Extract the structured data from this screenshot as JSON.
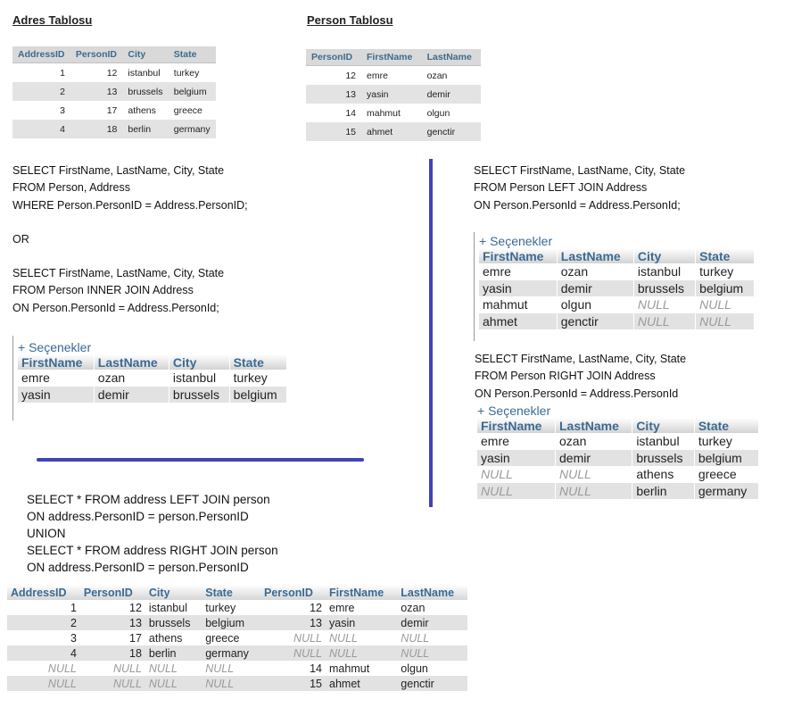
{
  "adres_title": "Adres Tablosu",
  "person_title": "Person Tablosu",
  "adres_table": {
    "headers": [
      "AddressID",
      "PersonID",
      "City",
      "State"
    ],
    "rows": [
      [
        "1",
        "12",
        "istanbul",
        "turkey"
      ],
      [
        "2",
        "13",
        "brussels",
        "belgium"
      ],
      [
        "3",
        "17",
        "athens",
        "greece"
      ],
      [
        "4",
        "18",
        "berlin",
        "germany"
      ]
    ]
  },
  "person_table": {
    "headers": [
      "PersonID",
      "FirstName",
      "LastName"
    ],
    "rows": [
      [
        "12",
        "emre",
        "ozan"
      ],
      [
        "13",
        "yasin",
        "demir"
      ],
      [
        "14",
        "mahmut",
        "olgun"
      ],
      [
        "15",
        "ahmet",
        "genctir"
      ]
    ]
  },
  "inner_join": {
    "query1": "SELECT FirstName, LastName, City, State\nFROM Person, Address\nWHERE Person.PersonID = Address.PersonID;",
    "or_label": "OR",
    "query2": "SELECT FirstName, LastName, City, State\nFROM Person INNER JOIN Address\nON Person.PersonId = Address.PersonId;",
    "options_label": "+ Seçenekler",
    "headers": [
      "FirstName",
      "LastName",
      "City",
      "State"
    ],
    "rows": [
      [
        "emre",
        "ozan",
        "istanbul",
        "turkey"
      ],
      [
        "yasin",
        "demir",
        "brussels",
        "belgium"
      ]
    ]
  },
  "left_join": {
    "query": "SELECT FirstName, LastName, City, State\nFROM Person LEFT JOIN Address\nON Person.PersonId = Address.PersonId;",
    "options_label": "+ Seçenekler",
    "headers": [
      "FirstName",
      "LastName",
      "City",
      "State"
    ],
    "rows": [
      [
        "emre",
        "ozan",
        "istanbul",
        "turkey"
      ],
      [
        "yasin",
        "demir",
        "brussels",
        "belgium"
      ],
      [
        "mahmut",
        "olgun",
        "NULL",
        "NULL"
      ],
      [
        "ahmet",
        "genctir",
        "NULL",
        "NULL"
      ]
    ]
  },
  "right_join": {
    "query": "SELECT FirstName, LastName, City, State\nFROM Person RIGHT JOIN Address\nON Person.PersonId = Address.PersonId",
    "options_label": "+ Seçenekler",
    "headers": [
      "FirstName",
      "LastName",
      "City",
      "State"
    ],
    "rows": [
      [
        "emre",
        "ozan",
        "istanbul",
        "turkey"
      ],
      [
        "yasin",
        "demir",
        "brussels",
        "belgium"
      ],
      [
        "NULL",
        "NULL",
        "athens",
        "greece"
      ],
      [
        "NULL",
        "NULL",
        "berlin",
        "germany"
      ]
    ]
  },
  "union": {
    "query": "SELECT * FROM address LEFT JOIN person\nON address.PersonID = person.PersonID\nUNION\nSELECT * FROM address RIGHT JOIN person\nON address.PersonID = person.PersonID",
    "headers": [
      "AddressID",
      "PersonID",
      "City",
      "State",
      "PersonID",
      "FirstName",
      "LastName"
    ],
    "rows": [
      [
        "1",
        "12",
        "istanbul",
        "turkey",
        "12",
        "emre",
        "ozan"
      ],
      [
        "2",
        "13",
        "brussels",
        "belgium",
        "13",
        "yasin",
        "demir"
      ],
      [
        "3",
        "17",
        "athens",
        "greece",
        "NULL",
        "NULL",
        "NULL"
      ],
      [
        "4",
        "18",
        "berlin",
        "germany",
        "NULL",
        "NULL",
        "NULL"
      ],
      [
        "NULL",
        "NULL",
        "NULL",
        "NULL",
        "14",
        "mahmut",
        "olgun"
      ],
      [
        "NULL",
        "NULL",
        "NULL",
        "NULL",
        "15",
        "ahmet",
        "genctir"
      ]
    ]
  },
  "colors": {
    "divider": "#4042b8",
    "header_text": "#3b6a93",
    "null_text": "#9a9a9a"
  }
}
